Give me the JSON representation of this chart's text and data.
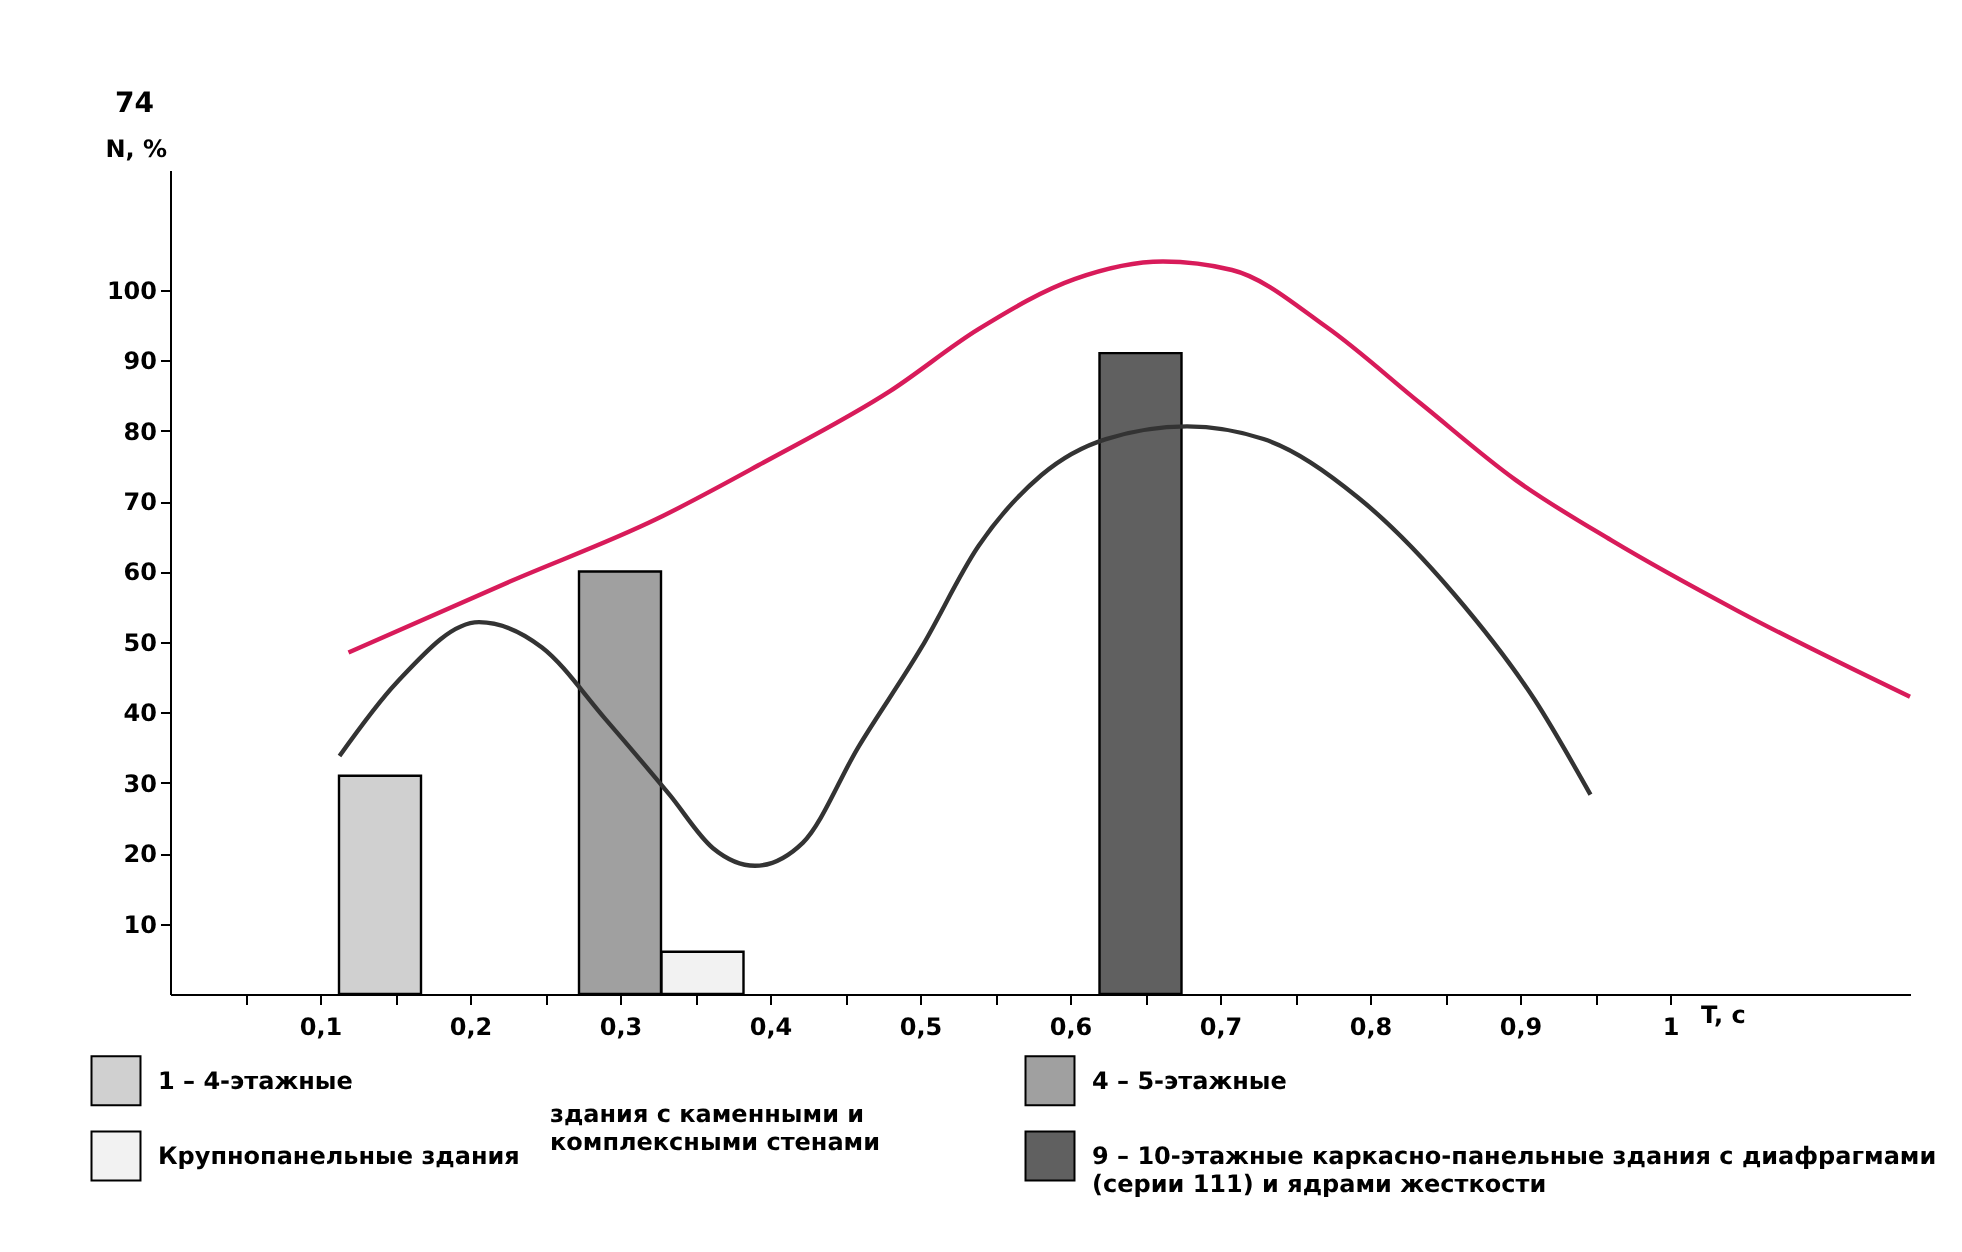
{
  "chart_data": {
    "type": "bar",
    "annotations": [
      "74",
      "здания с каменными и комплексными стенами"
    ],
    "xlabel": "T, с",
    "ylabel": "N, %",
    "xlim": [
      0,
      1.16
    ],
    "ylim": [
      0,
      117
    ],
    "xticks": [
      {
        "value": 0.05,
        "label": null
      },
      {
        "value": 0.1,
        "label": "0,1"
      },
      {
        "value": 0.15,
        "label": null
      },
      {
        "value": 0.2,
        "label": "0,2"
      },
      {
        "value": 0.25,
        "label": null
      },
      {
        "value": 0.3,
        "label": "0,3"
      },
      {
        "value": 0.35,
        "label": null
      },
      {
        "value": 0.4,
        "label": "0,4"
      },
      {
        "value": 0.45,
        "label": null
      },
      {
        "value": 0.5,
        "label": "0,5"
      },
      {
        "value": 0.55,
        "label": null
      },
      {
        "value": 0.6,
        "label": "0,6"
      },
      {
        "value": 0.65,
        "label": null
      },
      {
        "value": 0.7,
        "label": "0,7"
      },
      {
        "value": 0.75,
        "label": null
      },
      {
        "value": 0.8,
        "label": "0,8"
      },
      {
        "value": 0.85,
        "label": null
      },
      {
        "value": 0.9,
        "label": "0,9"
      },
      {
        "value": 0.95,
        "label": null
      },
      1
    ],
    "yticks": [
      10,
      20,
      30,
      40,
      50,
      60,
      70,
      80,
      90,
      100
    ],
    "grid": false,
    "legend": "bottom",
    "series": [
      {
        "name": "1 – 4-этажные",
        "color": "#d0d0d0",
        "x": [
          0.14
        ],
        "values": [
          31
        ]
      },
      {
        "name": "4 – 5-этажные",
        "color": "#a0a0a0",
        "x": [
          0.3
        ],
        "values": [
          60
        ]
      },
      {
        "name": "Крупнопанельные здания",
        "color": "#f2f2f2",
        "x": [
          0.355
        ],
        "values": [
          6
        ]
      },
      {
        "name": "9 – 10-этажные каркасно-панельные здания с диафрагмами (серии 111) и ядрами жесткости",
        "color": "#606060",
        "x": [
          0.647
        ],
        "values": [
          91
        ]
      },
      {
        "type": "line",
        "color": "#d81b5a",
        "x": [
          0.119,
          0.227,
          0.324,
          0.396,
          0.48,
          0.539,
          0.603,
          0.662,
          0.708,
          0.771,
          0.834,
          0.897,
          0.961,
          1.046,
          1.16
        ],
        "values": [
          48.5,
          58.6,
          67.4,
          75.5,
          85.6,
          94.4,
          101.5,
          104,
          102.8,
          94.7,
          83.8,
          73,
          64.4,
          54.3,
          42.2
        ]
      },
      {
        "type": "line",
        "color": "#333333",
        "x": [
          0.113,
          0.151,
          0.206,
          0.248,
          0.29,
          0.333,
          0.362,
          0.39,
          0.422,
          0.459,
          0.501,
          0.539,
          0.581,
          0.624,
          0.678,
          0.729,
          0.792,
          0.856,
          0.91,
          0.947
        ],
        "values": [
          33.8,
          44.2,
          52.8,
          49.2,
          39.1,
          28.3,
          20.7,
          18.2,
          21.5,
          35.1,
          49.2,
          63.6,
          73.7,
          78.8,
          80.6,
          78.8,
          70.5,
          56.8,
          41.7,
          28.3
        ]
      }
    ]
  }
}
